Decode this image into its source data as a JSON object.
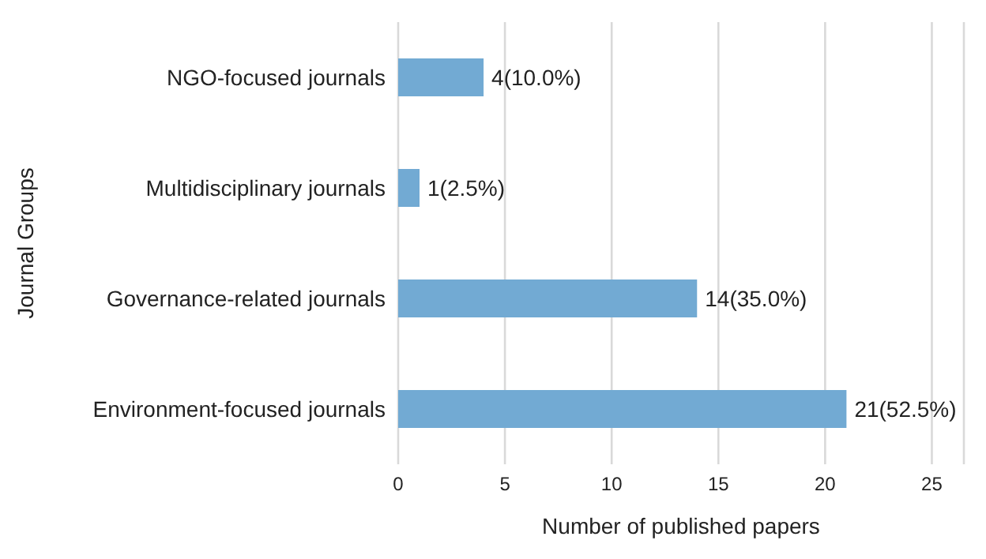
{
  "chart_data": {
    "type": "bar",
    "orientation": "horizontal",
    "xlabel": "Number of published papers",
    "ylabel": "Journal Groups",
    "categories": [
      "NGO-focused journals",
      "Multidisciplinary journals",
      "Governance-related journals",
      "Environment-focused journals"
    ],
    "values": [
      4,
      1,
      14,
      21
    ],
    "color": "#72aad3",
    "value_labels": [
      "4(10.0%)",
      "1(2.5%)",
      "14(35.0%)",
      "21(52.5%)"
    ],
    "xlim": [
      0,
      26.5
    ],
    "xticks": [
      0,
      5,
      10,
      15,
      20,
      25
    ],
    "grid": "x"
  }
}
